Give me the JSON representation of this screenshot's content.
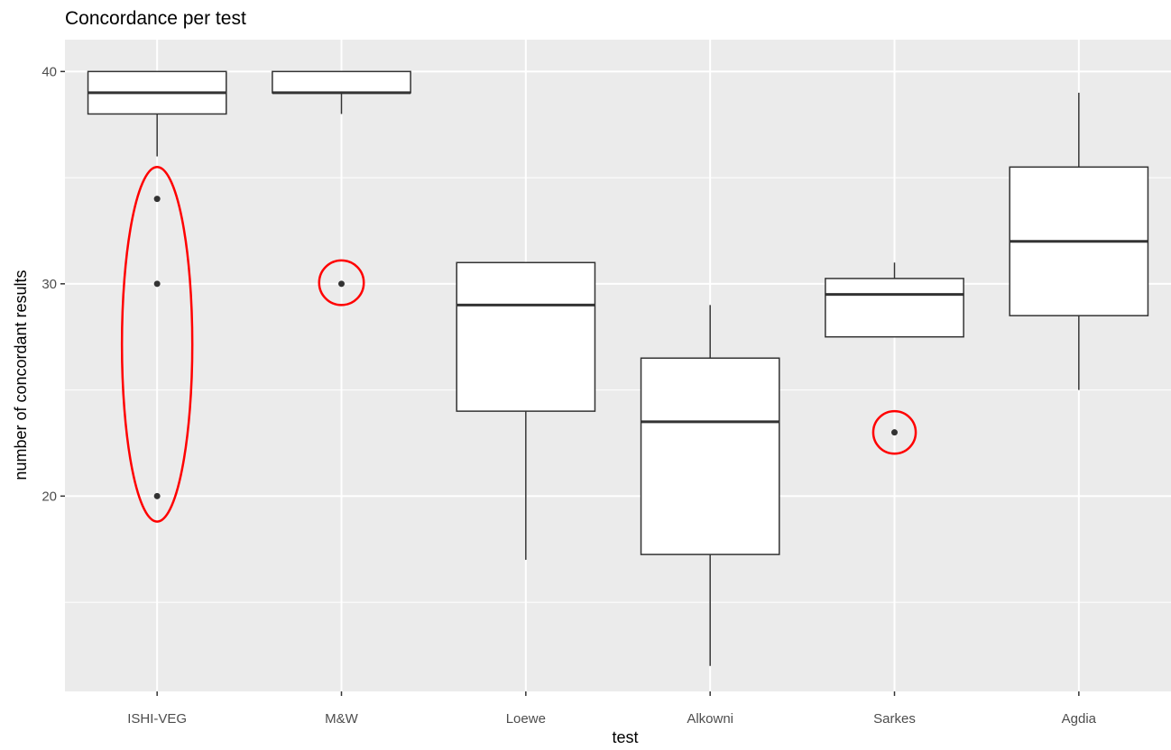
{
  "chart_data": {
    "type": "boxplot",
    "title": "Concordance per test",
    "xlabel": "test",
    "ylabel": "number of concordant results",
    "categories": [
      "ISHI-VEG",
      "M&W",
      "Loewe",
      "Alkowni",
      "Sarkes",
      "Agdia"
    ],
    "yticks": [
      20,
      30,
      40
    ],
    "ylim": [
      10.8,
      41.5
    ],
    "grid": true,
    "boxes": [
      {
        "name": "ISHI-VEG",
        "whisker_low": 36,
        "q1": 38,
        "median": 39,
        "q3": 40,
        "whisker_high": 40,
        "outliers": [
          34,
          30,
          20
        ]
      },
      {
        "name": "M&W",
        "whisker_low": 38,
        "q1": 39,
        "median": 39,
        "q3": 40,
        "whisker_high": 40,
        "outliers": [
          30
        ]
      },
      {
        "name": "Loewe",
        "whisker_low": 17,
        "q1": 24,
        "median": 29,
        "q3": 31,
        "whisker_high": 31,
        "outliers": []
      },
      {
        "name": "Alkowni",
        "whisker_low": 12,
        "q1": 17.25,
        "median": 23.5,
        "q3": 26.5,
        "whisker_high": 29,
        "outliers": []
      },
      {
        "name": "Sarkes",
        "whisker_low": 27.5,
        "q1": 27.5,
        "median": 29.5,
        "q3": 30.25,
        "whisker_high": 31,
        "outliers": [
          23
        ]
      },
      {
        "name": "Agdia",
        "whisker_low": 25,
        "q1": 28.5,
        "median": 32,
        "q3": 35.5,
        "whisker_high": 39,
        "outliers": []
      }
    ],
    "annotations": [
      {
        "shape": "ellipse",
        "category": "ISHI-VEG",
        "y_low": 18.8,
        "y_high": 35.5,
        "color": "#ff0000"
      },
      {
        "shape": "ellipse",
        "category": "M&W",
        "y_low": 29.0,
        "y_high": 31.1,
        "color": "#ff0000"
      },
      {
        "shape": "ellipse",
        "category": "Sarkes",
        "y_low": 22.0,
        "y_high": 24.0,
        "color": "#ff0000"
      }
    ],
    "colors": {
      "panel": "#ebebeb",
      "grid": "#ffffff",
      "box_fill": "#ffffff",
      "box_line": "#333333",
      "annotation": "#ff0000"
    }
  }
}
